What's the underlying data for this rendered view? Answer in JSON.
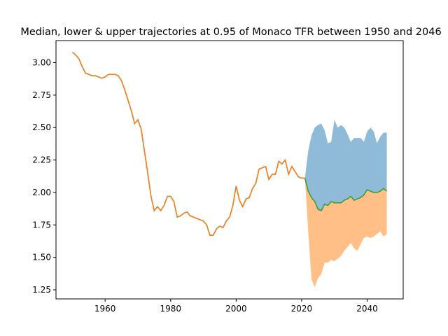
{
  "chart_data": {
    "type": "area",
    "title": "Median, lower & upper trajectories at 0.95 of Monaco TFR between 1950 and 2046",
    "xlabel": "",
    "ylabel": "",
    "xlim": [
      1945,
      2051
    ],
    "ylim": [
      1.18,
      3.17
    ],
    "xticks": [
      1960,
      1980,
      2000,
      2020,
      2040
    ],
    "yticks": [
      1.25,
      1.5,
      1.75,
      2.0,
      2.25,
      2.5,
      2.75,
      3.0
    ],
    "yticks_labels": [
      "1.25",
      "1.50",
      "1.75",
      "2.00",
      "2.25",
      "2.50",
      "2.75",
      "3.00"
    ],
    "grid": false,
    "legend": "none",
    "colors": {
      "historical": "#1f77b4",
      "historical_overlay": "#ff7f0e",
      "median": "#2ca02c",
      "upper_band": "#8fbbd9",
      "lower_band": "#ffbf86"
    },
    "historical": {
      "x": [
        1950,
        1951,
        1952,
        1953,
        1954,
        1955,
        1956,
        1957,
        1958,
        1959,
        1960,
        1961,
        1962,
        1963,
        1964,
        1965,
        1966,
        1967,
        1968,
        1969,
        1970,
        1971,
        1972,
        1973,
        1974,
        1975,
        1976,
        1977,
        1978,
        1979,
        1980,
        1981,
        1982,
        1983,
        1984,
        1985,
        1986,
        1987,
        1988,
        1989,
        1990,
        1991,
        1992,
        1993,
        1994,
        1995,
        1996,
        1997,
        1998,
        1999,
        2000,
        2001,
        2002,
        2003,
        2004,
        2005,
        2006,
        2007,
        2008,
        2009,
        2010,
        2011,
        2012,
        2013,
        2014,
        2015,
        2016,
        2017,
        2018,
        2019,
        2020,
        2021
      ],
      "y": [
        3.08,
        3.06,
        3.03,
        2.97,
        2.92,
        2.91,
        2.9,
        2.9,
        2.89,
        2.88,
        2.89,
        2.91,
        2.91,
        2.91,
        2.9,
        2.86,
        2.79,
        2.71,
        2.63,
        2.53,
        2.56,
        2.49,
        2.32,
        2.15,
        1.97,
        1.86,
        1.89,
        1.86,
        1.9,
        1.97,
        1.97,
        1.93,
        1.81,
        1.82,
        1.84,
        1.85,
        1.82,
        1.81,
        1.8,
        1.79,
        1.78,
        1.75,
        1.67,
        1.67,
        1.72,
        1.74,
        1.73,
        1.78,
        1.81,
        1.9,
        2.05,
        1.94,
        1.89,
        1.95,
        1.96,
        2.03,
        2.07,
        2.18,
        2.19,
        2.2,
        2.1,
        2.14,
        2.14,
        2.24,
        2.22,
        2.25,
        2.14,
        2.2,
        2.16,
        2.12,
        2.11,
        2.11
      ]
    },
    "projection": {
      "x": [
        2021,
        2022,
        2023,
        2024,
        2025,
        2026,
        2027,
        2028,
        2029,
        2030,
        2031,
        2032,
        2033,
        2034,
        2035,
        2036,
        2037,
        2038,
        2039,
        2040,
        2041,
        2042,
        2043,
        2044,
        2045,
        2046
      ],
      "median": [
        2.11,
        2.01,
        1.96,
        1.93,
        1.87,
        1.86,
        1.91,
        1.9,
        1.93,
        1.92,
        1.92,
        1.92,
        1.94,
        1.95,
        1.97,
        1.94,
        1.95,
        1.96,
        1.98,
        2.02,
        2.01,
        2.0,
        2.0,
        2.01,
        2.03,
        2.01
      ],
      "upper": [
        2.11,
        2.32,
        2.44,
        2.5,
        2.52,
        2.53,
        2.48,
        2.38,
        2.39,
        2.56,
        2.5,
        2.52,
        2.5,
        2.45,
        2.39,
        2.42,
        2.42,
        2.42,
        2.39,
        2.47,
        2.5,
        2.47,
        2.38,
        2.43,
        2.46,
        2.46
      ],
      "lower": [
        2.11,
        1.7,
        1.33,
        1.27,
        1.34,
        1.37,
        1.46,
        1.46,
        1.48,
        1.47,
        1.49,
        1.51,
        1.55,
        1.58,
        1.61,
        1.57,
        1.55,
        1.6,
        1.65,
        1.66,
        1.65,
        1.66,
        1.68,
        1.7,
        1.66,
        1.68
      ]
    }
  }
}
